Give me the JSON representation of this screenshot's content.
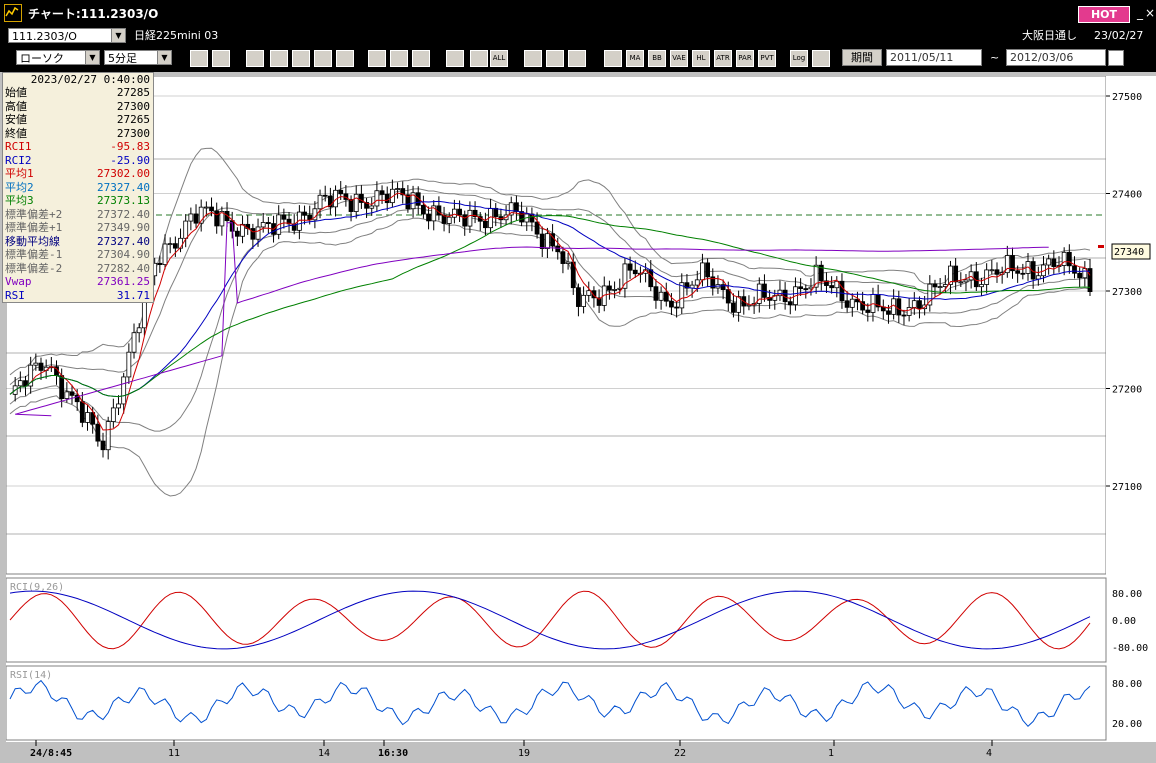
{
  "window": {
    "title": "チャート:111.2303/O",
    "hot_label": "HOT"
  },
  "symbol_bar": {
    "code": "111.2303/O",
    "name": "日経225mini 03",
    "session": "大阪日通し",
    "date": "23/02/27"
  },
  "toolbar": {
    "chart_type": "ローソク",
    "interval": "5分足",
    "buttons": [
      "zoom",
      "fit",
      "down",
      "zoom2",
      "paste",
      "mark",
      "warn",
      "draw",
      "cursor",
      "undo",
      "b1",
      "b2",
      "ALL",
      "gear",
      "tool",
      "color",
      "bar",
      "MA",
      "BB",
      "VAE",
      "HL",
      "ATR",
      "PAR",
      "PVT",
      "Log",
      "sel"
    ],
    "period_label": "期間",
    "date_from": "2011/05/11",
    "tilde": "~",
    "date_to": "2012/03/06"
  },
  "info": {
    "timestamp": "2023/02/27  0:40:00",
    "rows": [
      {
        "label": "始値",
        "value": "27285",
        "color": "#000000"
      },
      {
        "label": "高値",
        "value": "27300",
        "color": "#000000"
      },
      {
        "label": "安値",
        "value": "27265",
        "color": "#000000"
      },
      {
        "label": "終値",
        "value": "27300",
        "color": "#000000"
      },
      {
        "label": "RCI1",
        "value": "-95.83",
        "color": "#d00000"
      },
      {
        "label": "RCI2",
        "value": "-25.90",
        "color": "#0000c0"
      },
      {
        "label": "平均1",
        "value": "27302.00",
        "color": "#d00000"
      },
      {
        "label": "平均2",
        "value": "27327.40",
        "color": "#0070c0"
      },
      {
        "label": "平均3",
        "value": "27373.13",
        "color": "#008000"
      },
      {
        "label": "標準偏差+2",
        "value": "27372.40",
        "color": "#666666"
      },
      {
        "label": "標準偏差+1",
        "value": "27349.90",
        "color": "#666666"
      },
      {
        "label": "移動平均線",
        "value": "27327.40",
        "color": "#000080"
      },
      {
        "label": "標準偏差-1",
        "value": "27304.90",
        "color": "#666666"
      },
      {
        "label": "標準偏差-2",
        "value": "27282.40",
        "color": "#666666"
      },
      {
        "label": "Vwap",
        "value": "27361.25",
        "color": "#8000c0"
      },
      {
        "label": "RSI",
        "value": "31.71",
        "color": "#0000c0"
      }
    ]
  },
  "price_axis": {
    "ticks": [
      "27500",
      "27400",
      "27300",
      "27200",
      "27100"
    ],
    "current": "27340"
  },
  "rci_panel": {
    "label": "RCI(9,26)",
    "ticks": [
      "80.00",
      "0.00",
      "-80.00"
    ]
  },
  "rsi_panel": {
    "label": "RSI(14)",
    "ticks": [
      "80.00",
      "20.00"
    ]
  },
  "time_axis": {
    "labels": [
      "24/8:45",
      "11",
      "14",
      "16:30",
      "19",
      "22",
      "1",
      "4"
    ]
  },
  "colors": {
    "candle_up": "#ffffff",
    "candle_down": "#000000",
    "ma1": "#d00000",
    "ma2": "#0000c0",
    "ma3": "#008000",
    "vwap": "#8000c0",
    "bb": "#808080"
  }
}
